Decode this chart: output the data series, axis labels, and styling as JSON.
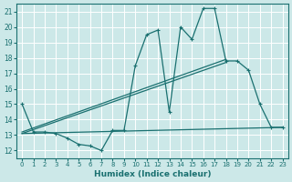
{
  "xlabel": "Humidex (Indice chaleur)",
  "bg_color": "#cce8e8",
  "grid_color": "#ffffff",
  "line_color": "#1a7070",
  "xlim": [
    -0.5,
    23.5
  ],
  "ylim": [
    11.5,
    21.5
  ],
  "xticks": [
    0,
    1,
    2,
    3,
    4,
    5,
    6,
    7,
    8,
    9,
    10,
    11,
    12,
    13,
    14,
    15,
    16,
    17,
    18,
    19,
    20,
    21,
    22,
    23
  ],
  "yticks": [
    12,
    13,
    14,
    15,
    16,
    17,
    18,
    19,
    20,
    21
  ],
  "line1_x": [
    0,
    1,
    2,
    3,
    4,
    5,
    6,
    7,
    8,
    9,
    10,
    11,
    12,
    13,
    14,
    15,
    16,
    17,
    18,
    19,
    20,
    21,
    22,
    23
  ],
  "line1_y": [
    15.0,
    13.2,
    13.2,
    13.1,
    12.8,
    12.4,
    12.3,
    12.0,
    13.3,
    13.3,
    17.5,
    19.5,
    19.8,
    14.5,
    20.0,
    19.2,
    21.2,
    21.2,
    17.8,
    17.8,
    17.2,
    15.0,
    13.5,
    13.5
  ],
  "line2_x": [
    0,
    23
  ],
  "line2_y": [
    13.1,
    13.5
  ],
  "line3_x": [
    0,
    18
  ],
  "line3_y": [
    13.1,
    17.7
  ],
  "line4_x": [
    0,
    18
  ],
  "line4_y": [
    13.2,
    17.9
  ]
}
